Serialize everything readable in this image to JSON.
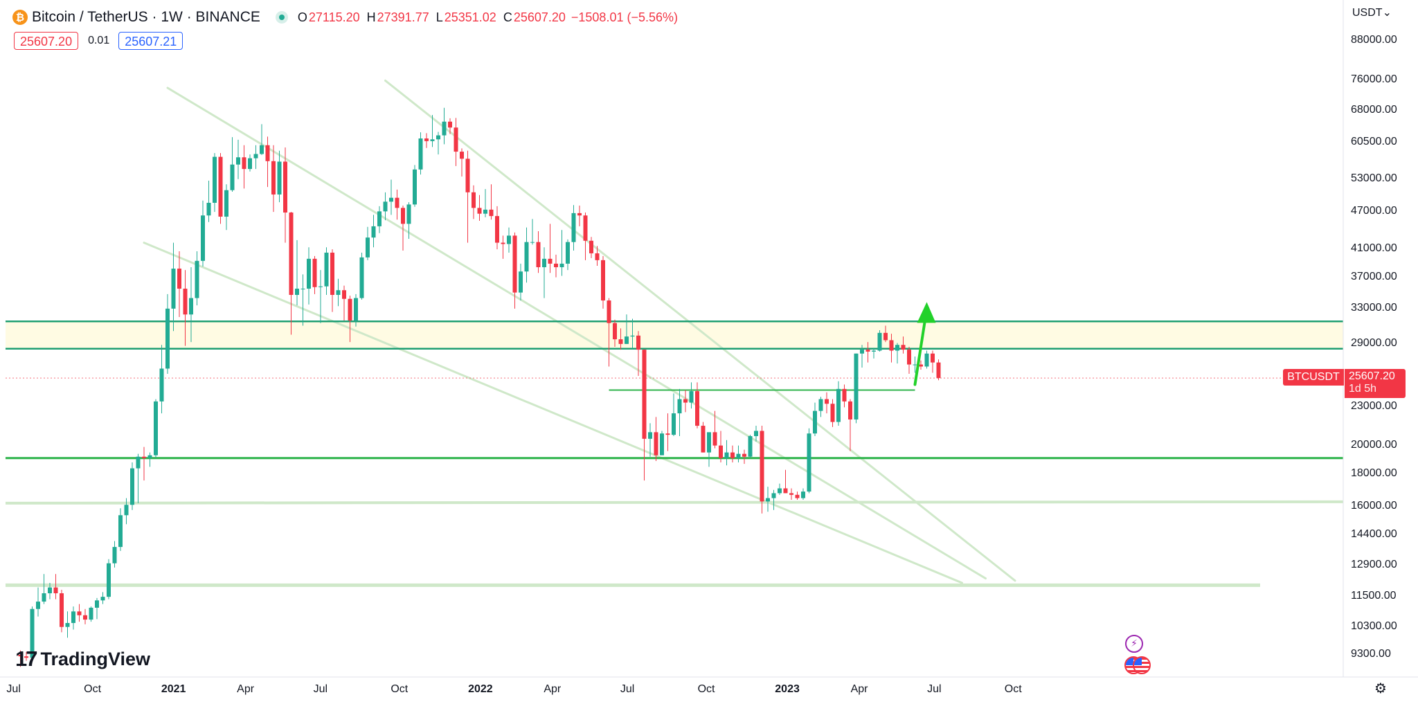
{
  "symbol": {
    "title": "Bitcoin / TetherUS · 1W · BINANCE",
    "logo_glyph": "₿",
    "logo_color": "#f7931a"
  },
  "ohlc": {
    "open_label": "O",
    "open": "27115.20",
    "high_label": "H",
    "high": "27391.77",
    "low_label": "L",
    "low": "25351.02",
    "close_label": "C",
    "close": "25607.20",
    "change": "−1508.01 (−5.56%)"
  },
  "trade": {
    "sell_price": "25607.20",
    "spread": "0.01",
    "buy_price": "25607.21"
  },
  "currency": "USDT",
  "currency_caret": "⌄",
  "brand": {
    "mark": "17",
    "name": "TradingView"
  },
  "tag": {
    "ticker": "BTCUSDT",
    "price": "25607.20",
    "countdown": "1d 5h"
  },
  "icons": {
    "event": "lightning-icon",
    "flag": "us-flag-icon",
    "settings": "settings-icon",
    "event_glyph": "⚡",
    "settings_glyph": "⚙"
  },
  "colors": {
    "up": "#22ab94",
    "down": "#f23645",
    "level_line": "#1e9e72",
    "support_line": "#2db34a",
    "trend_line": "#cfe8c9",
    "zone_fill": "#fffbe3",
    "arrow": "#22d12a"
  },
  "chart_data": {
    "type": "candlestick",
    "symbol": "BTCUSDT",
    "exchange": "BINANCE",
    "interval": "1W",
    "y_scale": "log",
    "ylim": [
      9000,
      93000
    ],
    "y_ticks": [
      "88000.00",
      "76000.00",
      "68000.00",
      "60500.00",
      "53000.00",
      "47000.00",
      "41000.00",
      "37000.00",
      "33000.00",
      "29000.00",
      "23000.00",
      "20000.00",
      "18000.00",
      "16000.00",
      "14400.00",
      "12900.00",
      "11500.00",
      "10300.00",
      "9300.00"
    ],
    "x_ticks": [
      {
        "label": "Jul",
        "bold": false
      },
      {
        "label": "Oct",
        "bold": false
      },
      {
        "label": "2021",
        "bold": true
      },
      {
        "label": "Apr",
        "bold": false
      },
      {
        "label": "Jul",
        "bold": false
      },
      {
        "label": "Oct",
        "bold": false
      },
      {
        "label": "2022",
        "bold": true
      },
      {
        "label": "Apr",
        "bold": false
      },
      {
        "label": "Jul",
        "bold": false
      },
      {
        "label": "Oct",
        "bold": false
      },
      {
        "label": "2023",
        "bold": true
      },
      {
        "label": "Apr",
        "bold": false
      },
      {
        "label": "Jul",
        "bold": false
      },
      {
        "label": "Oct",
        "bold": false
      }
    ],
    "start_week": "2020-07-06",
    "candles": [
      [
        9300,
        9450,
        8900,
        9250
      ],
      [
        9250,
        9400,
        9100,
        9200
      ],
      [
        9200,
        11100,
        9150,
        11000
      ],
      [
        11000,
        11900,
        10700,
        11300
      ],
      [
        11300,
        12500,
        11200,
        11650
      ],
      [
        11650,
        12100,
        11400,
        11900
      ],
      [
        11900,
        12500,
        11400,
        11650
      ],
      [
        11650,
        11800,
        10100,
        10300
      ],
      [
        10300,
        10900,
        9900,
        10450
      ],
      [
        10450,
        11100,
        10200,
        10900
      ],
      [
        10900,
        11200,
        10500,
        10750
      ],
      [
        10750,
        11000,
        10400,
        10580
      ],
      [
        10580,
        11100,
        10500,
        11050
      ],
      [
        11050,
        11450,
        10600,
        11350
      ],
      [
        11350,
        11700,
        11200,
        11500
      ],
      [
        11500,
        13200,
        11400,
        13000
      ],
      [
        13000,
        14100,
        12800,
        13800
      ],
      [
        13800,
        15900,
        13600,
        15500
      ],
      [
        15500,
        16500,
        15000,
        16100
      ],
      [
        16100,
        18800,
        15800,
        18400
      ],
      [
        18400,
        19400,
        16200,
        19200
      ],
      [
        19200,
        19900,
        17600,
        19100
      ],
      [
        19100,
        19500,
        18500,
        19300
      ],
      [
        19300,
        23700,
        19100,
        23500
      ],
      [
        23500,
        28900,
        22500,
        26500
      ],
      [
        26500,
        34800,
        26000,
        33000
      ],
      [
        33000,
        42000,
        30400,
        38200
      ],
      [
        38200,
        40700,
        32000,
        35500
      ],
      [
        35500,
        38000,
        28800,
        32300
      ],
      [
        32300,
        38400,
        29200,
        34300
      ],
      [
        34300,
        40700,
        33400,
        39300
      ],
      [
        39300,
        49000,
        38500,
        46400
      ],
      [
        46400,
        52700,
        45300,
        48600
      ],
      [
        48600,
        58300,
        47000,
        57500
      ],
      [
        57500,
        58300,
        45000,
        46200
      ],
      [
        46200,
        52000,
        44000,
        50900
      ],
      [
        50900,
        61800,
        50600,
        55900
      ],
      [
        55900,
        61200,
        53000,
        57400
      ],
      [
        57400,
        60000,
        51200,
        55000
      ],
      [
        55000,
        58000,
        54500,
        57200
      ],
      [
        57200,
        60000,
        55000,
        58100
      ],
      [
        58100,
        64800,
        57900,
        60000
      ],
      [
        60000,
        61900,
        51500,
        56600
      ],
      [
        56600,
        60000,
        47000,
        50100
      ],
      [
        50100,
        58800,
        48700,
        56500
      ],
      [
        56500,
        59500,
        42000,
        46900
      ],
      [
        46900,
        47000,
        30000,
        34700
      ],
      [
        34700,
        42400,
        33400,
        35500
      ],
      [
        35500,
        37400,
        31000,
        35500
      ],
      [
        35500,
        41300,
        33500,
        39600
      ],
      [
        39600,
        40000,
        34800,
        35700
      ],
      [
        35700,
        38000,
        31300,
        35800
      ],
      [
        35800,
        41300,
        34700,
        40500
      ],
      [
        40500,
        41000,
        32600,
        34700
      ],
      [
        34700,
        36800,
        33300,
        35300
      ],
      [
        35300,
        35900,
        31600,
        34200
      ],
      [
        34200,
        34600,
        29200,
        31600
      ],
      [
        31600,
        34800,
        30900,
        34300
      ],
      [
        34300,
        40500,
        34100,
        39800
      ],
      [
        39800,
        44500,
        39400,
        42800
      ],
      [
        42800,
        46500,
        41300,
        44600
      ],
      [
        44600,
        48000,
        43500,
        47100
      ],
      [
        47100,
        50500,
        45600,
        48800
      ],
      [
        48800,
        52900,
        46500,
        49500
      ],
      [
        49500,
        51000,
        45700,
        47700
      ],
      [
        47700,
        48100,
        40800,
        45000
      ],
      [
        45000,
        48700,
        42600,
        48300
      ],
      [
        48300,
        55800,
        47900,
        54900
      ],
      [
        54900,
        62900,
        53900,
        61500
      ],
      [
        61500,
        62700,
        59400,
        60900
      ],
      [
        60900,
        67000,
        59600,
        61300
      ],
      [
        61300,
        63000,
        58000,
        62200
      ],
      [
        62200,
        68800,
        60200,
        65400
      ],
      [
        65400,
        66200,
        62500,
        64000
      ],
      [
        64000,
        66300,
        55600,
        58600
      ],
      [
        58600,
        59300,
        53500,
        57100
      ],
      [
        57100,
        58800,
        42000,
        50500
      ],
      [
        50500,
        51800,
        45800,
        47700
      ],
      [
        47700,
        50000,
        45500,
        46700
      ],
      [
        46700,
        51100,
        46100,
        47400
      ],
      [
        47400,
        52000,
        45700,
        46300
      ],
      [
        46300,
        48000,
        41000,
        42000
      ],
      [
        42000,
        43100,
        39600,
        41800
      ],
      [
        41800,
        44400,
        40500,
        43100
      ],
      [
        43100,
        43600,
        33000,
        35000
      ],
      [
        35000,
        38900,
        34000,
        37800
      ],
      [
        37800,
        44400,
        36300,
        42100
      ],
      [
        42100,
        45800,
        41700,
        42100
      ],
      [
        42100,
        43800,
        37600,
        38400
      ],
      [
        38400,
        41300,
        34300,
        39600
      ],
      [
        39600,
        45000,
        37600,
        38900
      ],
      [
        38900,
        40200,
        37000,
        38400
      ],
      [
        38400,
        44000,
        37200,
        38900
      ],
      [
        38900,
        42500,
        38000,
        42100
      ],
      [
        42100,
        48200,
        40800,
        46800
      ],
      [
        46800,
        48100,
        44600,
        46400
      ],
      [
        46400,
        46900,
        39400,
        42300
      ],
      [
        42300,
        42900,
        39700,
        40400
      ],
      [
        40400,
        41500,
        38600,
        39400
      ],
      [
        39400,
        40000,
        33000,
        34000
      ],
      [
        34000,
        34300,
        26700,
        31300
      ],
      [
        31300,
        31700,
        28700,
        29500
      ],
      [
        29500,
        30700,
        28400,
        29000
      ],
      [
        29000,
        32300,
        29000,
        29800
      ],
      [
        29800,
        31800,
        28500,
        29900
      ],
      [
        29900,
        30400,
        25800,
        28400
      ],
      [
        28400,
        28400,
        17600,
        20500
      ],
      [
        20500,
        21700,
        19200,
        21000
      ],
      [
        21000,
        22200,
        18900,
        19300
      ],
      [
        19300,
        21100,
        19300,
        20900
      ],
      [
        20900,
        22500,
        19600,
        20800
      ],
      [
        20800,
        24200,
        20700,
        22500
      ],
      [
        22500,
        24600,
        20700,
        23700
      ],
      [
        23700,
        24500,
        22600,
        23400
      ],
      [
        23400,
        25200,
        22900,
        24400
      ],
      [
        24400,
        25200,
        21300,
        21500
      ],
      [
        21500,
        21800,
        19500,
        19500
      ],
      [
        19500,
        20700,
        18500,
        21000
      ],
      [
        21000,
        22700,
        19800,
        20000
      ],
      [
        20000,
        21100,
        18800,
        19100
      ],
      [
        19100,
        20400,
        18600,
        19500
      ],
      [
        19500,
        20000,
        18800,
        19100
      ],
      [
        19100,
        20000,
        18800,
        19400
      ],
      [
        19400,
        19700,
        18700,
        19200
      ],
      [
        19200,
        20800,
        19100,
        20700
      ],
      [
        20700,
        21500,
        20300,
        21100
      ],
      [
        21100,
        21500,
        15600,
        16300
      ],
      [
        16300,
        17200,
        15700,
        16500
      ],
      [
        16500,
        17000,
        15800,
        16800
      ],
      [
        16800,
        17400,
        16700,
        17100
      ],
      [
        17100,
        18300,
        16800,
        16800
      ],
      [
        16800,
        17100,
        16400,
        16700
      ],
      [
        16700,
        16900,
        16400,
        16500
      ],
      [
        16500,
        17100,
        16400,
        16900
      ],
      [
        16900,
        21300,
        16800,
        20900
      ],
      [
        20900,
        23400,
        20700,
        22700
      ],
      [
        22700,
        23900,
        22200,
        23700
      ],
      [
        23700,
        24300,
        22500,
        23300
      ],
      [
        23300,
        23700,
        21400,
        21800
      ],
      [
        21800,
        25300,
        21500,
        24600
      ],
      [
        24600,
        25000,
        23000,
        23500
      ],
      [
        23500,
        23700,
        19600,
        22000
      ],
      [
        22000,
        28000,
        21700,
        28000
      ],
      [
        28000,
        28900,
        26600,
        28400
      ],
      [
        28400,
        29200,
        27100,
        28200
      ],
      [
        28200,
        28600,
        27500,
        28300
      ],
      [
        28300,
        30500,
        28200,
        30200
      ],
      [
        30200,
        31000,
        29200,
        29400
      ],
      [
        29400,
        30100,
        27100,
        28300
      ],
      [
        28300,
        29100,
        27000,
        28900
      ],
      [
        28900,
        29800,
        28000,
        28400
      ],
      [
        28400,
        28700,
        26000,
        26900
      ],
      [
        26900,
        27700,
        26100,
        26900
      ],
      [
        26900,
        27300,
        26400,
        26700
      ],
      [
        26700,
        28300,
        26500,
        28000
      ],
      [
        28000,
        28300,
        26100,
        27100
      ],
      [
        27100,
        27400,
        25400,
        25600
      ]
    ],
    "drawings": {
      "resistance_zone": [
        28500,
        31500
      ],
      "horizontal_levels": [
        31500,
        28500,
        24500,
        19100
      ],
      "support_levels": [
        16200,
        12000
      ],
      "forecast_arrow": {
        "from_price": 25000,
        "to_price": 33800
      }
    }
  }
}
